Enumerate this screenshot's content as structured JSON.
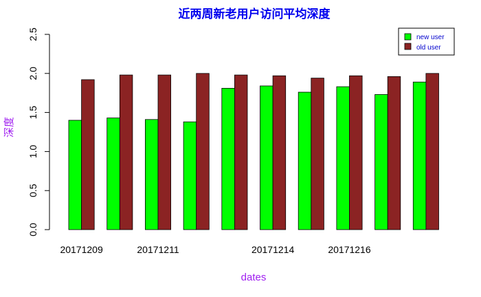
{
  "colors": {
    "title": "#0000ee",
    "axis_label": "#a020f0",
    "new_user": "#00ff00",
    "old_user": "#8b2323",
    "legend_text": "#0000cd"
  },
  "chart_data": {
    "type": "bar",
    "title": "近两周新老用户访问平均深度",
    "xlabel": "dates",
    "ylabel": "深度",
    "ylim": [
      0,
      2.5
    ],
    "yticks": [
      "0.0",
      "0.5",
      "1.0",
      "1.5",
      "2.0",
      "2.5"
    ],
    "categories": [
      "20171209",
      "",
      "20171211",
      "",
      "",
      "20171214",
      "",
      "20171216",
      "",
      ""
    ],
    "series": [
      {
        "name": "new user",
        "values": [
          1.4,
          1.43,
          1.41,
          1.38,
          1.81,
          1.84,
          1.76,
          1.83,
          1.73,
          1.89
        ]
      },
      {
        "name": "old user",
        "values": [
          1.92,
          1.98,
          1.98,
          2.0,
          1.98,
          1.97,
          1.94,
          1.97,
          1.96,
          2.0
        ]
      }
    ],
    "legend_position": "top-right",
    "grid": false
  }
}
